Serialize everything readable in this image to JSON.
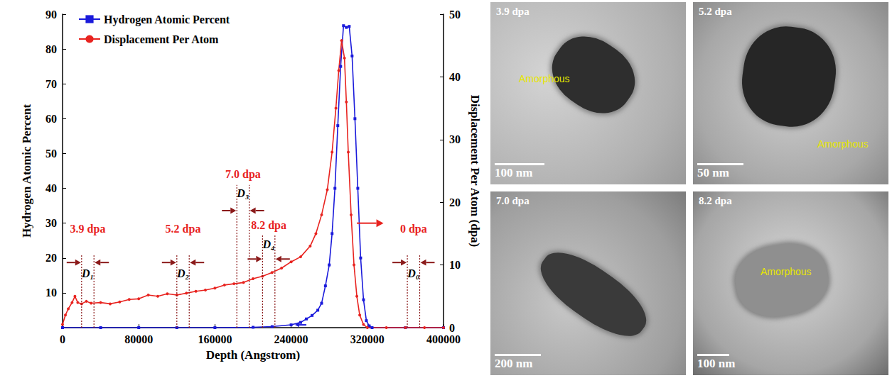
{
  "chart_data": {
    "type": "line",
    "xlabel": "Depth (Angstrom)",
    "ylabel": "Hydrogen Atomic Percent",
    "y2label": "Displacement Per Atom (dpa)",
    "xlim": [
      0,
      400000
    ],
    "xticks": [
      0,
      80000,
      160000,
      240000,
      320000,
      400000
    ],
    "ylim": [
      0,
      90
    ],
    "yticks": [
      10,
      20,
      30,
      40,
      50,
      60,
      70,
      80,
      90
    ],
    "y2lim": [
      0,
      50
    ],
    "y2ticks": [
      0,
      10,
      20,
      30,
      40,
      50
    ],
    "grid": false,
    "legend": "upper left",
    "series": [
      {
        "name": "Hydrogen Atomic Percent",
        "color": "#1a1adb",
        "marker": "square",
        "x": [
          0,
          40000,
          80000,
          120000,
          160000,
          200000,
          220000,
          240000,
          250000,
          256000,
          262000,
          268000,
          272000,
          276000,
          280000,
          283000,
          286000,
          289000,
          292000,
          295000,
          298000,
          301000,
          304000,
          307000,
          310000,
          313000,
          316000,
          319000,
          322000,
          325000,
          360000,
          400000
        ],
        "values": [
          0,
          0,
          0,
          0,
          0,
          0.1,
          0.3,
          0.8,
          1.5,
          2.5,
          3.5,
          5,
          7,
          12,
          18,
          27,
          40,
          58,
          75,
          86.7,
          86.2,
          86.5,
          78,
          60,
          40,
          20,
          8,
          2,
          0.5,
          0,
          0,
          0
        ]
      },
      {
        "name": "Displacement Per Atom",
        "color": "#e8231f",
        "marker": "circle",
        "axis": "y2",
        "x": [
          0,
          3000,
          6000,
          10000,
          13000,
          16000,
          20000,
          25000,
          30000,
          40000,
          50000,
          60000,
          70000,
          80000,
          90000,
          100000,
          110000,
          120000,
          130000,
          140000,
          150000,
          160000,
          170000,
          180000,
          190000,
          200000,
          210000,
          220000,
          230000,
          240000,
          250000,
          260000,
          266000,
          272000,
          278000,
          283000,
          287000,
          290000,
          293000,
          296000,
          298000,
          300000,
          303000,
          306000,
          309000,
          312000,
          316000,
          320000,
          340000,
          360000,
          380000,
          400000
        ],
        "values": [
          0.5,
          2,
          3,
          4,
          5,
          4,
          3.8,
          4.2,
          3.9,
          4,
          3.8,
          4.1,
          4.5,
          4.6,
          5.2,
          5,
          5.4,
          5.2,
          5.5,
          5.8,
          6,
          6.3,
          6.8,
          7,
          7.2,
          7.8,
          8.2,
          8.8,
          9.5,
          10.5,
          11.3,
          13,
          15,
          18,
          22,
          28,
          35,
          41,
          45.8,
          43,
          36,
          28,
          18,
          10,
          5,
          2,
          0.5,
          0,
          0,
          0,
          0,
          0
        ]
      }
    ],
    "annotations": [
      {
        "label": "D₁",
        "dpa": "3.9 dpa",
        "from": 20000,
        "to": 33000
      },
      {
        "label": "D₂",
        "dpa": "5.2 dpa",
        "from": 120000,
        "to": 133000
      },
      {
        "label": "D₃",
        "dpa": "7.0 dpa",
        "from": 183000,
        "to": 196000
      },
      {
        "label": "D₄",
        "dpa": "8.2 dpa",
        "from": 210000,
        "to": 223000
      },
      {
        "label": "D₀",
        "dpa": "0 dpa",
        "from": 362000,
        "to": 375000
      }
    ]
  },
  "images": [
    {
      "label": "3.9 dpa",
      "annotation": "Amorphous",
      "scale_bar": "100 nm"
    },
    {
      "label": "5.2 dpa",
      "annotation": "Amorphous",
      "scale_bar": "50 nm"
    },
    {
      "label": "7.0 dpa",
      "scale_bar": "200 nm"
    },
    {
      "label": "8.2 dpa",
      "annotation": "Amorphous",
      "scale_bar": "100 nm"
    }
  ]
}
